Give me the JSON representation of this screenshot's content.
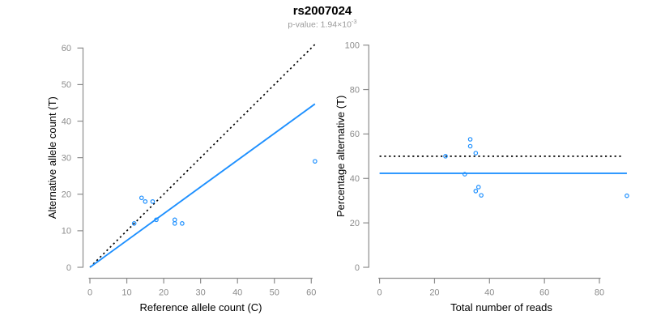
{
  "header": {
    "title": "rs2007024",
    "pvalue_base": "p-value: 1.94×10",
    "pvalue_exponent": "-3"
  },
  "style": {
    "accent_blue": "#1E90FF",
    "line_black": "#000000",
    "axis_gray": "#8C8C8C",
    "subtitle_gray": "#9A9A9A",
    "label_black": "#000000"
  },
  "chart_data": [
    {
      "type": "scatter",
      "name": "allele-count-scatter",
      "xlabel": "Reference allele count (C)",
      "ylabel": "Alternative allele count (T)",
      "xlim": [
        0,
        60
      ],
      "ylim": [
        0,
        60
      ],
      "xticks": [
        0,
        10,
        20,
        30,
        40,
        50,
        60
      ],
      "yticks": [
        0,
        10,
        20,
        30,
        40,
        50,
        60
      ],
      "grid": false,
      "legend": false,
      "points": [
        [
          14,
          19
        ],
        [
          15,
          18
        ],
        [
          17,
          18
        ],
        [
          12,
          12
        ],
        [
          18,
          13
        ],
        [
          23,
          13
        ],
        [
          23,
          12
        ],
        [
          25,
          12
        ],
        [
          61,
          29
        ]
      ],
      "lines": [
        {
          "name": "identity-line",
          "style": "dotted",
          "color": "#000000",
          "from": [
            0,
            0
          ],
          "to": [
            61,
            61
          ]
        },
        {
          "name": "fit-line",
          "style": "solid",
          "color": "#1E90FF",
          "from": [
            0,
            0
          ],
          "to": [
            61,
            44.7
          ]
        }
      ]
    },
    {
      "type": "scatter",
      "name": "percentage-scatter",
      "xlabel": "Total number of reads",
      "ylabel": "Percentage alternative (T)",
      "xlim": [
        0,
        80
      ],
      "ylim": [
        0,
        100
      ],
      "xticks": [
        0,
        20,
        40,
        60,
        80
      ],
      "yticks": [
        0,
        20,
        40,
        60,
        80,
        100
      ],
      "grid": false,
      "legend": false,
      "points": [
        [
          33,
          57.6
        ],
        [
          33,
          54.5
        ],
        [
          35,
          51.4
        ],
        [
          24,
          50.0
        ],
        [
          31,
          41.9
        ],
        [
          36,
          36.1
        ],
        [
          35,
          34.3
        ],
        [
          37,
          32.4
        ],
        [
          90,
          32.2
        ]
      ],
      "lines": [
        {
          "name": "expected-percentage-line",
          "style": "dotted",
          "color": "#000000",
          "from": [
            0,
            50
          ],
          "to": [
            88.5,
            50
          ]
        },
        {
          "name": "observed-percentage-line",
          "style": "solid",
          "color": "#1E90FF",
          "from": [
            0,
            42.3
          ],
          "to": [
            90,
            42.3
          ]
        }
      ]
    }
  ]
}
